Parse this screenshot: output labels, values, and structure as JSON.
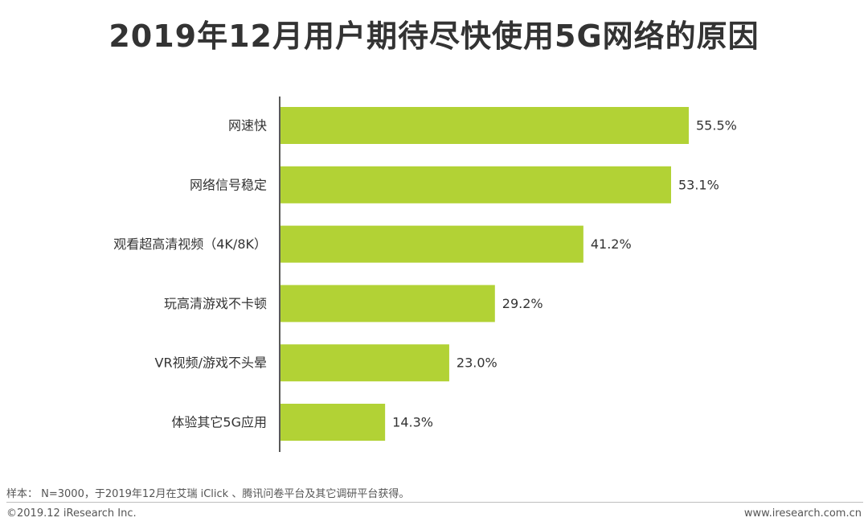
{
  "title": "2019年12月用户期待尽快使用5G网络的原因",
  "chart_data": {
    "type": "bar",
    "orientation": "horizontal",
    "title": "2019年12月用户期待尽快使用5G网络的原因",
    "categories": [
      "网速快",
      "网络信号稳定",
      "观看超高清视频（4K/8K）",
      "玩高清游戏不卡顿",
      "VR视频/游戏不头晕",
      "体验其它5G应用"
    ],
    "values": [
      55.5,
      53.1,
      41.2,
      29.2,
      23.0,
      14.3
    ],
    "value_labels": [
      "55.5%",
      "53.1%",
      "41.2%",
      "29.2%",
      "23.0%",
      "14.3%"
    ],
    "unit": "%",
    "xlim": [
      0,
      60
    ],
    "grid": false,
    "legend": "none",
    "bar_color": "#b2d235",
    "axis_color": "#595959"
  },
  "footer": {
    "note": "样本： N=3000，于2019年12月在艾瑞 iClick 、腾讯问卷平台及其它调研平台获得。",
    "copyright": "©2019.12 iResearch Inc.",
    "website": "www.iresearch.com.cn"
  }
}
